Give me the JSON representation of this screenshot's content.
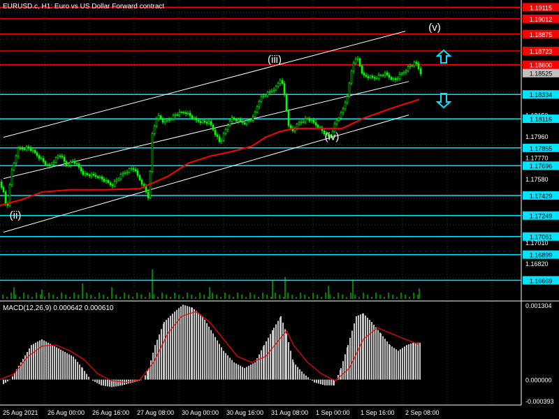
{
  "header": {
    "title": "EURUSD.c, H1:  Euro vs US Dollar Forward contract"
  },
  "macd": {
    "title": "MACD(12,26,9) 0.000642 0.000610",
    "scale_labels": [
      "0.001304",
      "0.000000",
      "-0.000393"
    ]
  },
  "colors": {
    "background": "#000000",
    "grid": "#3a3a3a",
    "candle": "#00ff00",
    "ma": "#ff0000",
    "channel": "#ffffff",
    "resistance": "#ff0000",
    "support": "#00e5ff",
    "volume": "#00ff00",
    "macd_hist": "#c8c8c8",
    "macd_signal": "#ff0000",
    "arrow": "#00e5ff",
    "current_price_bg": "#c0c0c0"
  },
  "chart_data": {
    "type": "candlestick",
    "symbol": "EURUSD.c",
    "timeframe": "H1",
    "ylim": [
      1.1649,
      1.1918
    ],
    "x_labels": [
      "25 Aug 2021",
      "26 Aug 00:00",
      "26 Aug 16:00",
      "27 Aug 08:00",
      "30 Aug 00:00",
      "30 Aug 16:00",
      "31 Aug 08:00",
      "1 Sep 00:00",
      "1 Sep 16:00",
      "2 Sep 08:00"
    ],
    "y_ticks": [
      "1.18150",
      "1.17960",
      "1.17770",
      "1.17580",
      "1.17010",
      "1.16820"
    ],
    "price_path": [
      [
        0,
        1.1755
      ],
      [
        5,
        1.1745
      ],
      [
        10,
        1.1728
      ],
      [
        15,
        1.176
      ],
      [
        25,
        1.1784
      ],
      [
        40,
        1.1786
      ],
      [
        55,
        1.1778
      ],
      [
        70,
        1.1768
      ],
      [
        85,
        1.178
      ],
      [
        95,
        1.177
      ],
      [
        105,
        1.1774
      ],
      [
        120,
        1.1762
      ],
      [
        140,
        1.176
      ],
      [
        160,
        1.1752
      ],
      [
        175,
        1.1762
      ],
      [
        190,
        1.1768
      ],
      [
        205,
        1.1752
      ],
      [
        213,
        1.174
      ],
      [
        218,
        1.1798
      ],
      [
        225,
        1.1815
      ],
      [
        235,
        1.1808
      ],
      [
        250,
        1.1815
      ],
      [
        265,
        1.1818
      ],
      [
        280,
        1.181
      ],
      [
        300,
        1.1808
      ],
      [
        315,
        1.179
      ],
      [
        330,
        1.1812
      ],
      [
        350,
        1.1808
      ],
      [
        362,
        1.1812
      ],
      [
        372,
        1.183
      ],
      [
        385,
        1.1835
      ],
      [
        395,
        1.184
      ],
      [
        402,
        1.1848
      ],
      [
        408,
        1.183
      ],
      [
        412,
        1.1808
      ],
      [
        418,
        1.18
      ],
      [
        428,
        1.1808
      ],
      [
        440,
        1.1812
      ],
      [
        455,
        1.1805
      ],
      [
        465,
        1.1798
      ],
      [
        472,
        1.1795
      ],
      [
        480,
        1.1808
      ],
      [
        490,
        1.1818
      ],
      [
        498,
        1.1835
      ],
      [
        505,
        1.1862
      ],
      [
        512,
        1.1865
      ],
      [
        520,
        1.185
      ],
      [
        535,
        1.1848
      ],
      [
        550,
        1.1852
      ],
      [
        565,
        1.1846
      ],
      [
        575,
        1.1852
      ],
      [
        585,
        1.1858
      ],
      [
        595,
        1.1862
      ],
      [
        602,
        1.1853
      ]
    ],
    "ma_path": [
      [
        0,
        1.1734
      ],
      [
        30,
        1.1739
      ],
      [
        60,
        1.1746
      ],
      [
        100,
        1.1748
      ],
      [
        150,
        1.1748
      ],
      [
        200,
        1.1749
      ],
      [
        240,
        1.176
      ],
      [
        270,
        1.1772
      ],
      [
        300,
        1.1778
      ],
      [
        330,
        1.1782
      ],
      [
        360,
        1.1787
      ],
      [
        380,
        1.1795
      ],
      [
        400,
        1.18
      ],
      [
        420,
        1.1803
      ],
      [
        460,
        1.1803
      ],
      [
        490,
        1.1803
      ],
      [
        520,
        1.1812
      ],
      [
        560,
        1.1821
      ],
      [
        600,
        1.1829
      ]
    ],
    "channel_lines": [
      {
        "x": [
          5,
          580
        ],
        "y": [
          1.1795,
          1.189
        ]
      },
      {
        "x": [
          5,
          585
        ],
        "y": [
          1.1758,
          1.1845
        ]
      },
      {
        "x": [
          5,
          585
        ],
        "y": [
          1.171,
          1.1815
        ]
      }
    ],
    "resistance_levels": [
      1.19115,
      1.19012,
      1.18875,
      1.18723,
      1.186
    ],
    "support_levels": [
      1.18334,
      1.18116,
      1.17855,
      1.17696,
      1.17429,
      1.17249,
      1.17061,
      1.16899,
      1.16669
    ],
    "current_price": 1.18525,
    "wave_labels": [
      {
        "text": "(ii)",
        "x": 22,
        "price": 1.17223
      },
      {
        "text": "(iii)",
        "x": 393,
        "price": 1.18616
      },
      {
        "text": "(iv)",
        "x": 475,
        "price": 1.17925
      },
      {
        "text": "(v)",
        "x": 622,
        "price": 1.18905
      }
    ],
    "volume": [
      {
        "x": 20,
        "v": 0.3
      },
      {
        "x": 60,
        "v": 0.2
      },
      {
        "x": 118,
        "v": 0.45
      },
      {
        "x": 160,
        "v": 0.3
      },
      {
        "x": 218,
        "v": 1.0
      },
      {
        "x": 300,
        "v": 0.3
      },
      {
        "x": 390,
        "v": 0.55
      },
      {
        "x": 408,
        "v": 0.7
      },
      {
        "x": 470,
        "v": 0.35
      },
      {
        "x": 505,
        "v": 0.6
      },
      {
        "x": 600,
        "v": 0.25
      }
    ],
    "macd_hist": [
      [
        5,
        -8e-05
      ],
      [
        15,
        0.0
      ],
      [
        30,
        0.0003
      ],
      [
        45,
        0.0006
      ],
      [
        60,
        0.0007
      ],
      [
        75,
        0.0006
      ],
      [
        90,
        0.0005
      ],
      [
        105,
        0.0004
      ],
      [
        118,
        0.0002
      ],
      [
        130,
        0.0
      ],
      [
        145,
        -0.0001
      ],
      [
        160,
        -0.00013
      ],
      [
        175,
        -0.0001
      ],
      [
        190,
        -5e-05
      ],
      [
        205,
        0.0
      ],
      [
        213,
        0.0002
      ],
      [
        222,
        0.0006
      ],
      [
        235,
        0.001
      ],
      [
        250,
        0.00118
      ],
      [
        262,
        0.0013
      ],
      [
        275,
        0.00125
      ],
      [
        290,
        0.0011
      ],
      [
        305,
        0.0008
      ],
      [
        320,
        0.0005
      ],
      [
        335,
        0.0003
      ],
      [
        350,
        0.0002
      ],
      [
        365,
        0.0003
      ],
      [
        378,
        0.0006
      ],
      [
        392,
        0.0009
      ],
      [
        402,
        0.0011
      ],
      [
        410,
        0.0008
      ],
      [
        420,
        0.0003
      ],
      [
        435,
        0.0001
      ],
      [
        450,
        -5e-05
      ],
      [
        465,
        -0.0001
      ],
      [
        478,
        -0.0001
      ],
      [
        488,
        0.0002
      ],
      [
        498,
        0.0006
      ],
      [
        510,
        0.0011
      ],
      [
        520,
        0.00115
      ],
      [
        532,
        0.001
      ],
      [
        545,
        0.0008
      ],
      [
        558,
        0.0006
      ],
      [
        570,
        0.0005
      ],
      [
        582,
        0.0006
      ],
      [
        592,
        0.00064
      ],
      [
        602,
        0.00064
      ]
    ],
    "macd_signal": [
      [
        0,
        0.0
      ],
      [
        20,
        0.0001
      ],
      [
        40,
        0.0004
      ],
      [
        60,
        0.00058
      ],
      [
        80,
        0.0006
      ],
      [
        100,
        0.0005
      ],
      [
        120,
        0.00035
      ],
      [
        140,
        0.0001
      ],
      [
        160,
        -2e-05
      ],
      [
        180,
        -5e-05
      ],
      [
        200,
        0.0
      ],
      [
        220,
        0.0003
      ],
      [
        240,
        0.0008
      ],
      [
        260,
        0.0011
      ],
      [
        280,
        0.00118
      ],
      [
        300,
        0.001
      ],
      [
        320,
        0.0007
      ],
      [
        340,
        0.0004
      ],
      [
        360,
        0.0003
      ],
      [
        380,
        0.0004
      ],
      [
        400,
        0.0007
      ],
      [
        410,
        0.00085
      ],
      [
        420,
        0.0006
      ],
      [
        440,
        0.0003
      ],
      [
        460,
        0.0001
      ],
      [
        480,
        -2e-05
      ],
      [
        500,
        0.0002
      ],
      [
        520,
        0.0007
      ],
      [
        540,
        0.0009
      ],
      [
        560,
        0.0008
      ],
      [
        580,
        0.0007
      ],
      [
        600,
        0.00061
      ]
    ],
    "macd_ylim": [
      -0.000393,
      0.001304
    ]
  }
}
